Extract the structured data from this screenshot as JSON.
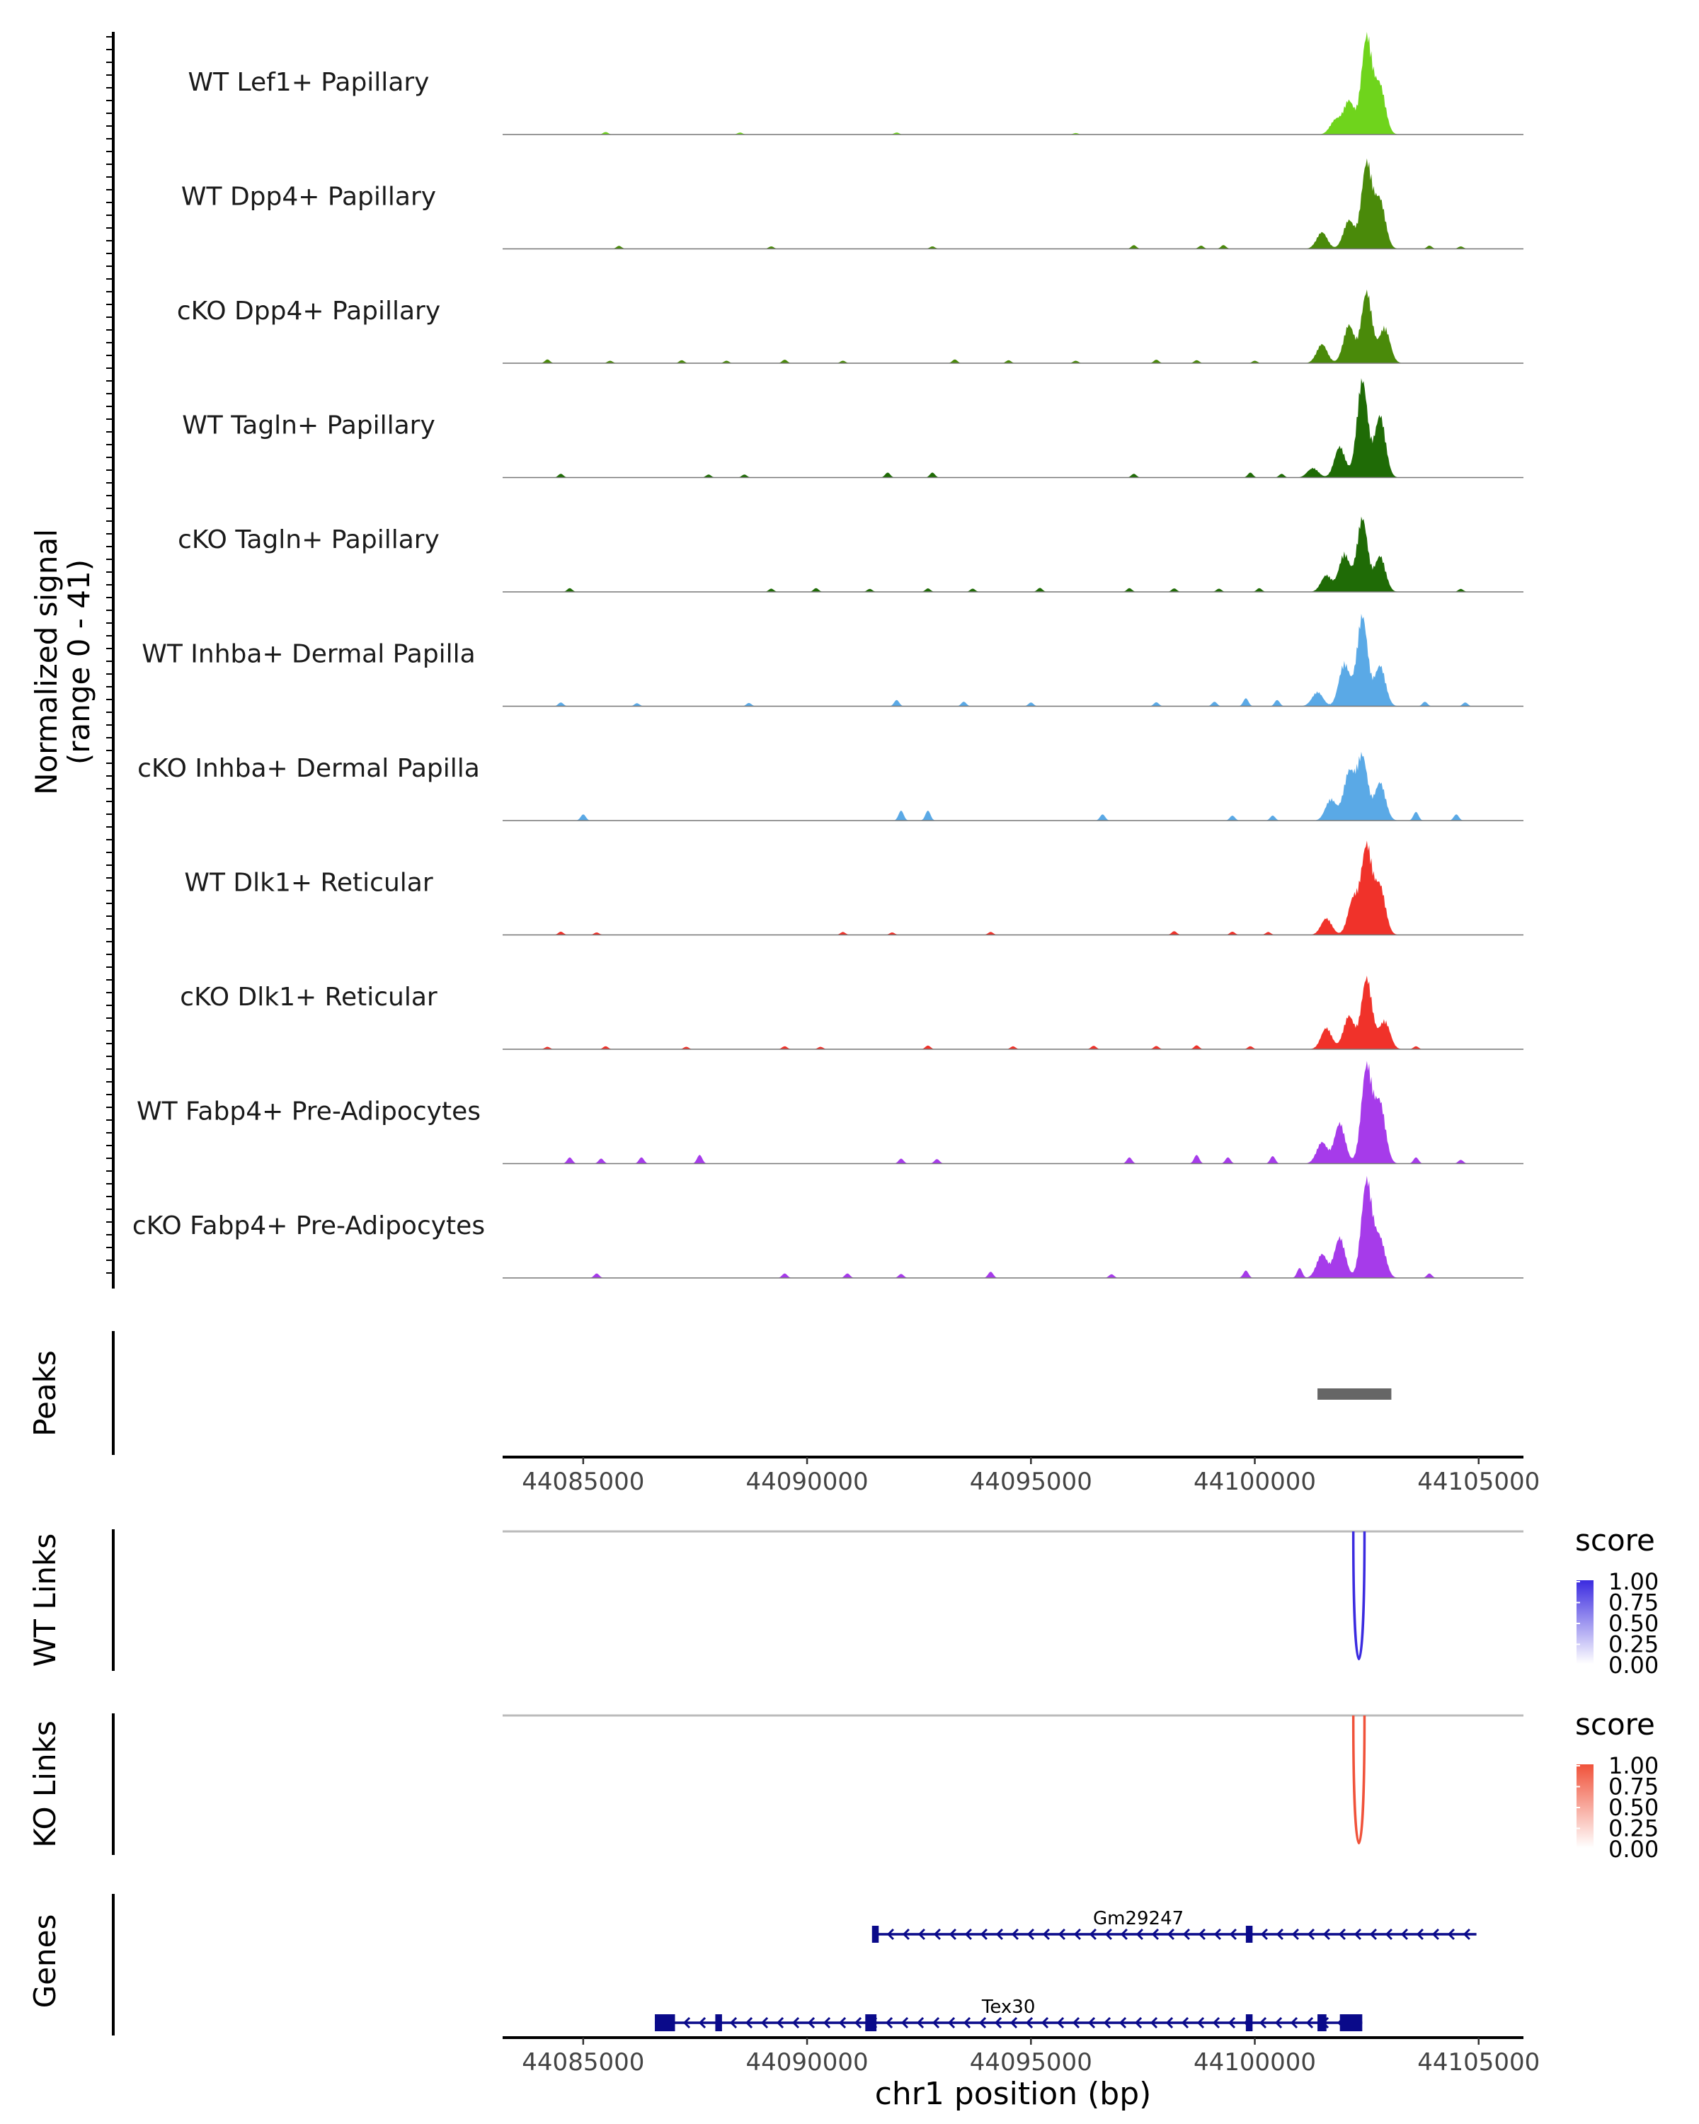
{
  "chart_data": {
    "type": "area",
    "title": "",
    "xlabel": "chr1 position (bp)",
    "x_range": [
      44083200,
      44106000
    ],
    "x_ticks": [
      44085000,
      44090000,
      44095000,
      44100000,
      44105000
    ],
    "x_tick_labels": [
      "44085000",
      "44090000",
      "44095000",
      "44100000",
      "44105000"
    ],
    "coverage": {
      "ylabel_line1": "Normalized signal",
      "ylabel_line2": "(range 0 - 41)",
      "ylim": [
        0,
        41
      ],
      "tracks": [
        {
          "name": "WT Lef1+ Papillary",
          "color": "#6fd41c",
          "peaks": [
            [
              44102500,
              41
            ],
            [
              44102800,
              20
            ],
            [
              44102100,
              14
            ],
            [
              44101800,
              6
            ]
          ],
          "blips": [
            [
              44085500,
              1.0
            ],
            [
              44088500,
              0.8
            ],
            [
              44092000,
              0.8
            ],
            [
              44096000,
              0.6
            ]
          ]
        },
        {
          "name": "WT Dpp4+ Papillary",
          "color": "#4a8a0a",
          "peaks": [
            [
              44102500,
              36
            ],
            [
              44102800,
              20
            ],
            [
              44102100,
              12
            ],
            [
              44101500,
              7
            ]
          ],
          "blips": [
            [
              44085800,
              1.2
            ],
            [
              44089200,
              1.0
            ],
            [
              44092800,
              1.0
            ],
            [
              44097300,
              1.5
            ],
            [
              44098800,
              1.3
            ],
            [
              44099300,
              1.5
            ],
            [
              44103900,
              1.3
            ],
            [
              44104600,
              1.0
            ]
          ]
        },
        {
          "name": "cKO Dpp4+ Papillary",
          "color": "#4a8a0a",
          "peaks": [
            [
              44102500,
              30
            ],
            [
              44102100,
              16
            ],
            [
              44102900,
              15
            ],
            [
              44101500,
              8
            ]
          ],
          "blips": [
            [
              44084200,
              1.5
            ],
            [
              44085600,
              1.0
            ],
            [
              44087200,
              1.2
            ],
            [
              44088200,
              1.0
            ],
            [
              44089500,
              1.4
            ],
            [
              44090800,
              1.0
            ],
            [
              44093300,
              1.5
            ],
            [
              44094500,
              1.2
            ],
            [
              44096000,
              1.0
            ],
            [
              44097800,
              1.4
            ],
            [
              44098700,
              1.2
            ],
            [
              44100000,
              1.0
            ]
          ]
        },
        {
          "name": "WT Tagln+ Papillary",
          "color": "#1f6b06",
          "peaks": [
            [
              44102400,
              41
            ],
            [
              44102800,
              26
            ],
            [
              44101900,
              13
            ],
            [
              44101300,
              4
            ]
          ],
          "blips": [
            [
              44084500,
              1.5
            ],
            [
              44087800,
              1.2
            ],
            [
              44088600,
              1.2
            ],
            [
              44091800,
              2.0
            ],
            [
              44092800,
              2.0
            ],
            [
              44097300,
              1.5
            ],
            [
              44099900,
              2.0
            ],
            [
              44100600,
              1.5
            ]
          ]
        },
        {
          "name": "cKO Tagln+ Papillary",
          "color": "#1f6b06",
          "peaks": [
            [
              44102400,
              31
            ],
            [
              44102000,
              16
            ],
            [
              44102800,
              15
            ],
            [
              44101600,
              7
            ]
          ],
          "blips": [
            [
              44084700,
              1.5
            ],
            [
              44089200,
              1.3
            ],
            [
              44090200,
              1.5
            ],
            [
              44091400,
              1.2
            ],
            [
              44092700,
              1.4
            ],
            [
              44093700,
              1.3
            ],
            [
              44095200,
              1.6
            ],
            [
              44097200,
              1.5
            ],
            [
              44098200,
              1.4
            ],
            [
              44099200,
              1.3
            ],
            [
              44100100,
              1.5
            ],
            [
              44104600,
              1.2
            ]
          ]
        },
        {
          "name": "WT Inhba+ Dermal Papilla",
          "color": "#5aa9e6",
          "peaks": [
            [
              44102400,
              38
            ],
            [
              44102000,
              18
            ],
            [
              44102800,
              17
            ],
            [
              44101400,
              6
            ]
          ],
          "blips": [
            [
              44084500,
              1.5
            ],
            [
              44086200,
              1.2
            ],
            [
              44088700,
              1.3
            ],
            [
              44092000,
              2.5
            ],
            [
              44093500,
              1.8
            ],
            [
              44095000,
              1.5
            ],
            [
              44097800,
              1.6
            ],
            [
              44099100,
              1.8
            ],
            [
              44099800,
              3.2
            ],
            [
              44100500,
              2.5
            ],
            [
              44103800,
              1.8
            ],
            [
              44104700,
              1.5
            ]
          ]
        },
        {
          "name": "cKO Inhba+ Dermal Papilla",
          "color": "#5aa9e6",
          "peaks": [
            [
              44102400,
              27
            ],
            [
              44102100,
              20
            ],
            [
              44102800,
              16
            ],
            [
              44101700,
              9
            ]
          ],
          "blips": [
            [
              44085000,
              2.5
            ],
            [
              44092100,
              4.0
            ],
            [
              44092700,
              4.0
            ],
            [
              44096600,
              2.5
            ],
            [
              44099500,
              2.0
            ],
            [
              44100400,
              2.0
            ],
            [
              44103600,
              3.5
            ],
            [
              44104500,
              2.5
            ]
          ]
        },
        {
          "name": "WT Dlk1+ Reticular",
          "color": "#f0322a",
          "peaks": [
            [
              44102500,
              37
            ],
            [
              44102800,
              20
            ],
            [
              44102200,
              15
            ],
            [
              44101600,
              7
            ]
          ],
          "blips": [
            [
              44084500,
              1.3
            ],
            [
              44085300,
              1.0
            ],
            [
              44090800,
              1.2
            ],
            [
              44091900,
              1.0
            ],
            [
              44094100,
              1.2
            ],
            [
              44098200,
              1.5
            ],
            [
              44099500,
              1.3
            ],
            [
              44100300,
              1.2
            ]
          ]
        },
        {
          "name": "cKO Dlk1+ Reticular",
          "color": "#f0322a",
          "peaks": [
            [
              44102500,
              30
            ],
            [
              44102100,
              14
            ],
            [
              44102900,
              12
            ],
            [
              44101600,
              9
            ]
          ],
          "blips": [
            [
              44084200,
              1.0
            ],
            [
              44085500,
              1.2
            ],
            [
              44087300,
              1.0
            ],
            [
              44089500,
              1.2
            ],
            [
              44090300,
              1.0
            ],
            [
              44092700,
              1.5
            ],
            [
              44094600,
              1.2
            ],
            [
              44096400,
              1.4
            ],
            [
              44097800,
              1.3
            ],
            [
              44098700,
              1.6
            ],
            [
              44099900,
              1.2
            ],
            [
              44103600,
              1.2
            ]
          ]
        },
        {
          "name": "WT Fabp4+ Pre-Adipocytes",
          "color": "#a63bea",
          "peaks": [
            [
              44102500,
              41
            ],
            [
              44101900,
              17
            ],
            [
              44102800,
              25
            ],
            [
              44101500,
              9
            ]
          ],
          "blips": [
            [
              44084700,
              2.5
            ],
            [
              44085400,
              2.0
            ],
            [
              44086300,
              2.5
            ],
            [
              44087600,
              3.5
            ],
            [
              44092100,
              2.0
            ],
            [
              44092900,
              1.8
            ],
            [
              44097200,
              2.5
            ],
            [
              44098700,
              3.5
            ],
            [
              44099400,
              2.5
            ],
            [
              44100400,
              3.0
            ],
            [
              44103600,
              2.5
            ],
            [
              44104600,
              1.5
            ]
          ]
        },
        {
          "name": "cKO Fabp4+ Pre-Adipocytes",
          "color": "#a63bea",
          "peaks": [
            [
              44102500,
              41
            ],
            [
              44101900,
              17
            ],
            [
              44102800,
              16
            ],
            [
              44101500,
              10
            ]
          ],
          "blips": [
            [
              44085300,
              1.8
            ],
            [
              44089500,
              1.8
            ],
            [
              44090900,
              1.8
            ],
            [
              44092100,
              1.6
            ],
            [
              44094100,
              2.5
            ],
            [
              44096800,
              1.5
            ],
            [
              44099800,
              3.0
            ],
            [
              44101000,
              4.0
            ],
            [
              44103900,
              1.8
            ]
          ]
        }
      ]
    },
    "peaks_track": {
      "ylabel": "Peaks",
      "regions": [
        [
          44101400,
          44103050
        ]
      ]
    },
    "links": [
      {
        "ylabel": "WT Links",
        "color": "#3b2be0",
        "start": 44102200,
        "end": 44102450,
        "score": 1.0,
        "legend_title": "score",
        "legend_ticks": [
          "1.00",
          "0.75",
          "0.50",
          "0.25",
          "0.00"
        ]
      },
      {
        "ylabel": "KO Links",
        "color": "#f0523a",
        "start": 44102200,
        "end": 44102450,
        "score": 1.0,
        "legend_title": "score",
        "legend_ticks": [
          "1.00",
          "0.75",
          "0.50",
          "0.25",
          "0.00"
        ]
      }
    ],
    "genes": {
      "ylabel": "Genes",
      "color": "#0a0a8a",
      "transcripts": [
        {
          "name": "Gm29247",
          "start": 44091500,
          "end": 44104950,
          "strand": "-",
          "exons": [
            [
              44091450,
              44091600
            ],
            [
              44099800,
              44099950
            ]
          ]
        },
        {
          "name": "Tex30",
          "start": 44086600,
          "end": 44102400,
          "strand": "-",
          "exons": [
            [
              44086600,
              44087050
            ],
            [
              44087950,
              44088100
            ],
            [
              44091300,
              44091550
            ],
            [
              44099800,
              44099950
            ],
            [
              44101400,
              44101600
            ],
            [
              44101900,
              44102400
            ]
          ]
        }
      ]
    }
  }
}
